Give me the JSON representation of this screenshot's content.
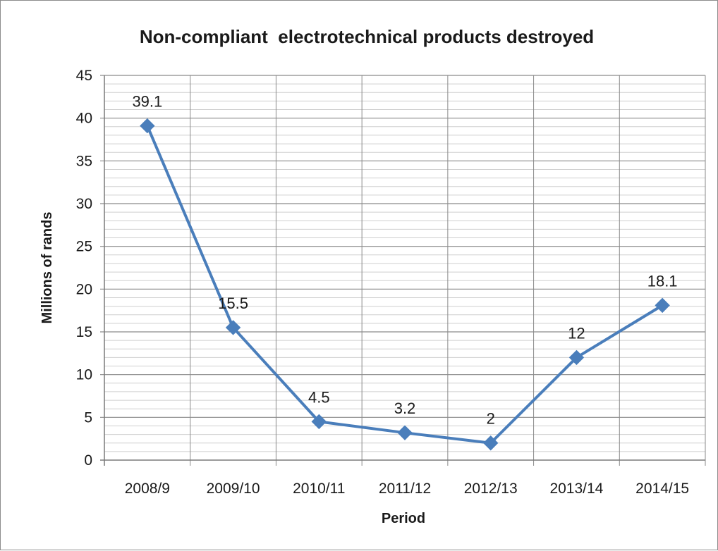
{
  "chart_data": {
    "type": "line",
    "title": "Non-compliant  electrotechnical products destroyed",
    "xlabel": "Period",
    "ylabel": "Millions of rands",
    "categories": [
      "2008/9",
      "2009/10",
      "2010/11",
      "2011/12",
      "2012/13",
      "2013/14",
      "2014/15"
    ],
    "series": [
      {
        "values": [
          39.1,
          15.5,
          4.5,
          3.2,
          2,
          12,
          18.1
        ],
        "labels": [
          "39.1",
          "15.5",
          "4.5",
          "3.2",
          "2",
          "12",
          "18.1"
        ],
        "color": "#4a7ebb",
        "marker": "diamond"
      }
    ],
    "ylim": [
      0,
      45
    ],
    "ytick_step": 5,
    "minor_ytick_step": 1,
    "yticks": [
      "0",
      "5",
      "10",
      "15",
      "20",
      "25",
      "30",
      "35",
      "40",
      "45"
    ],
    "grid": true,
    "legend": "none"
  }
}
